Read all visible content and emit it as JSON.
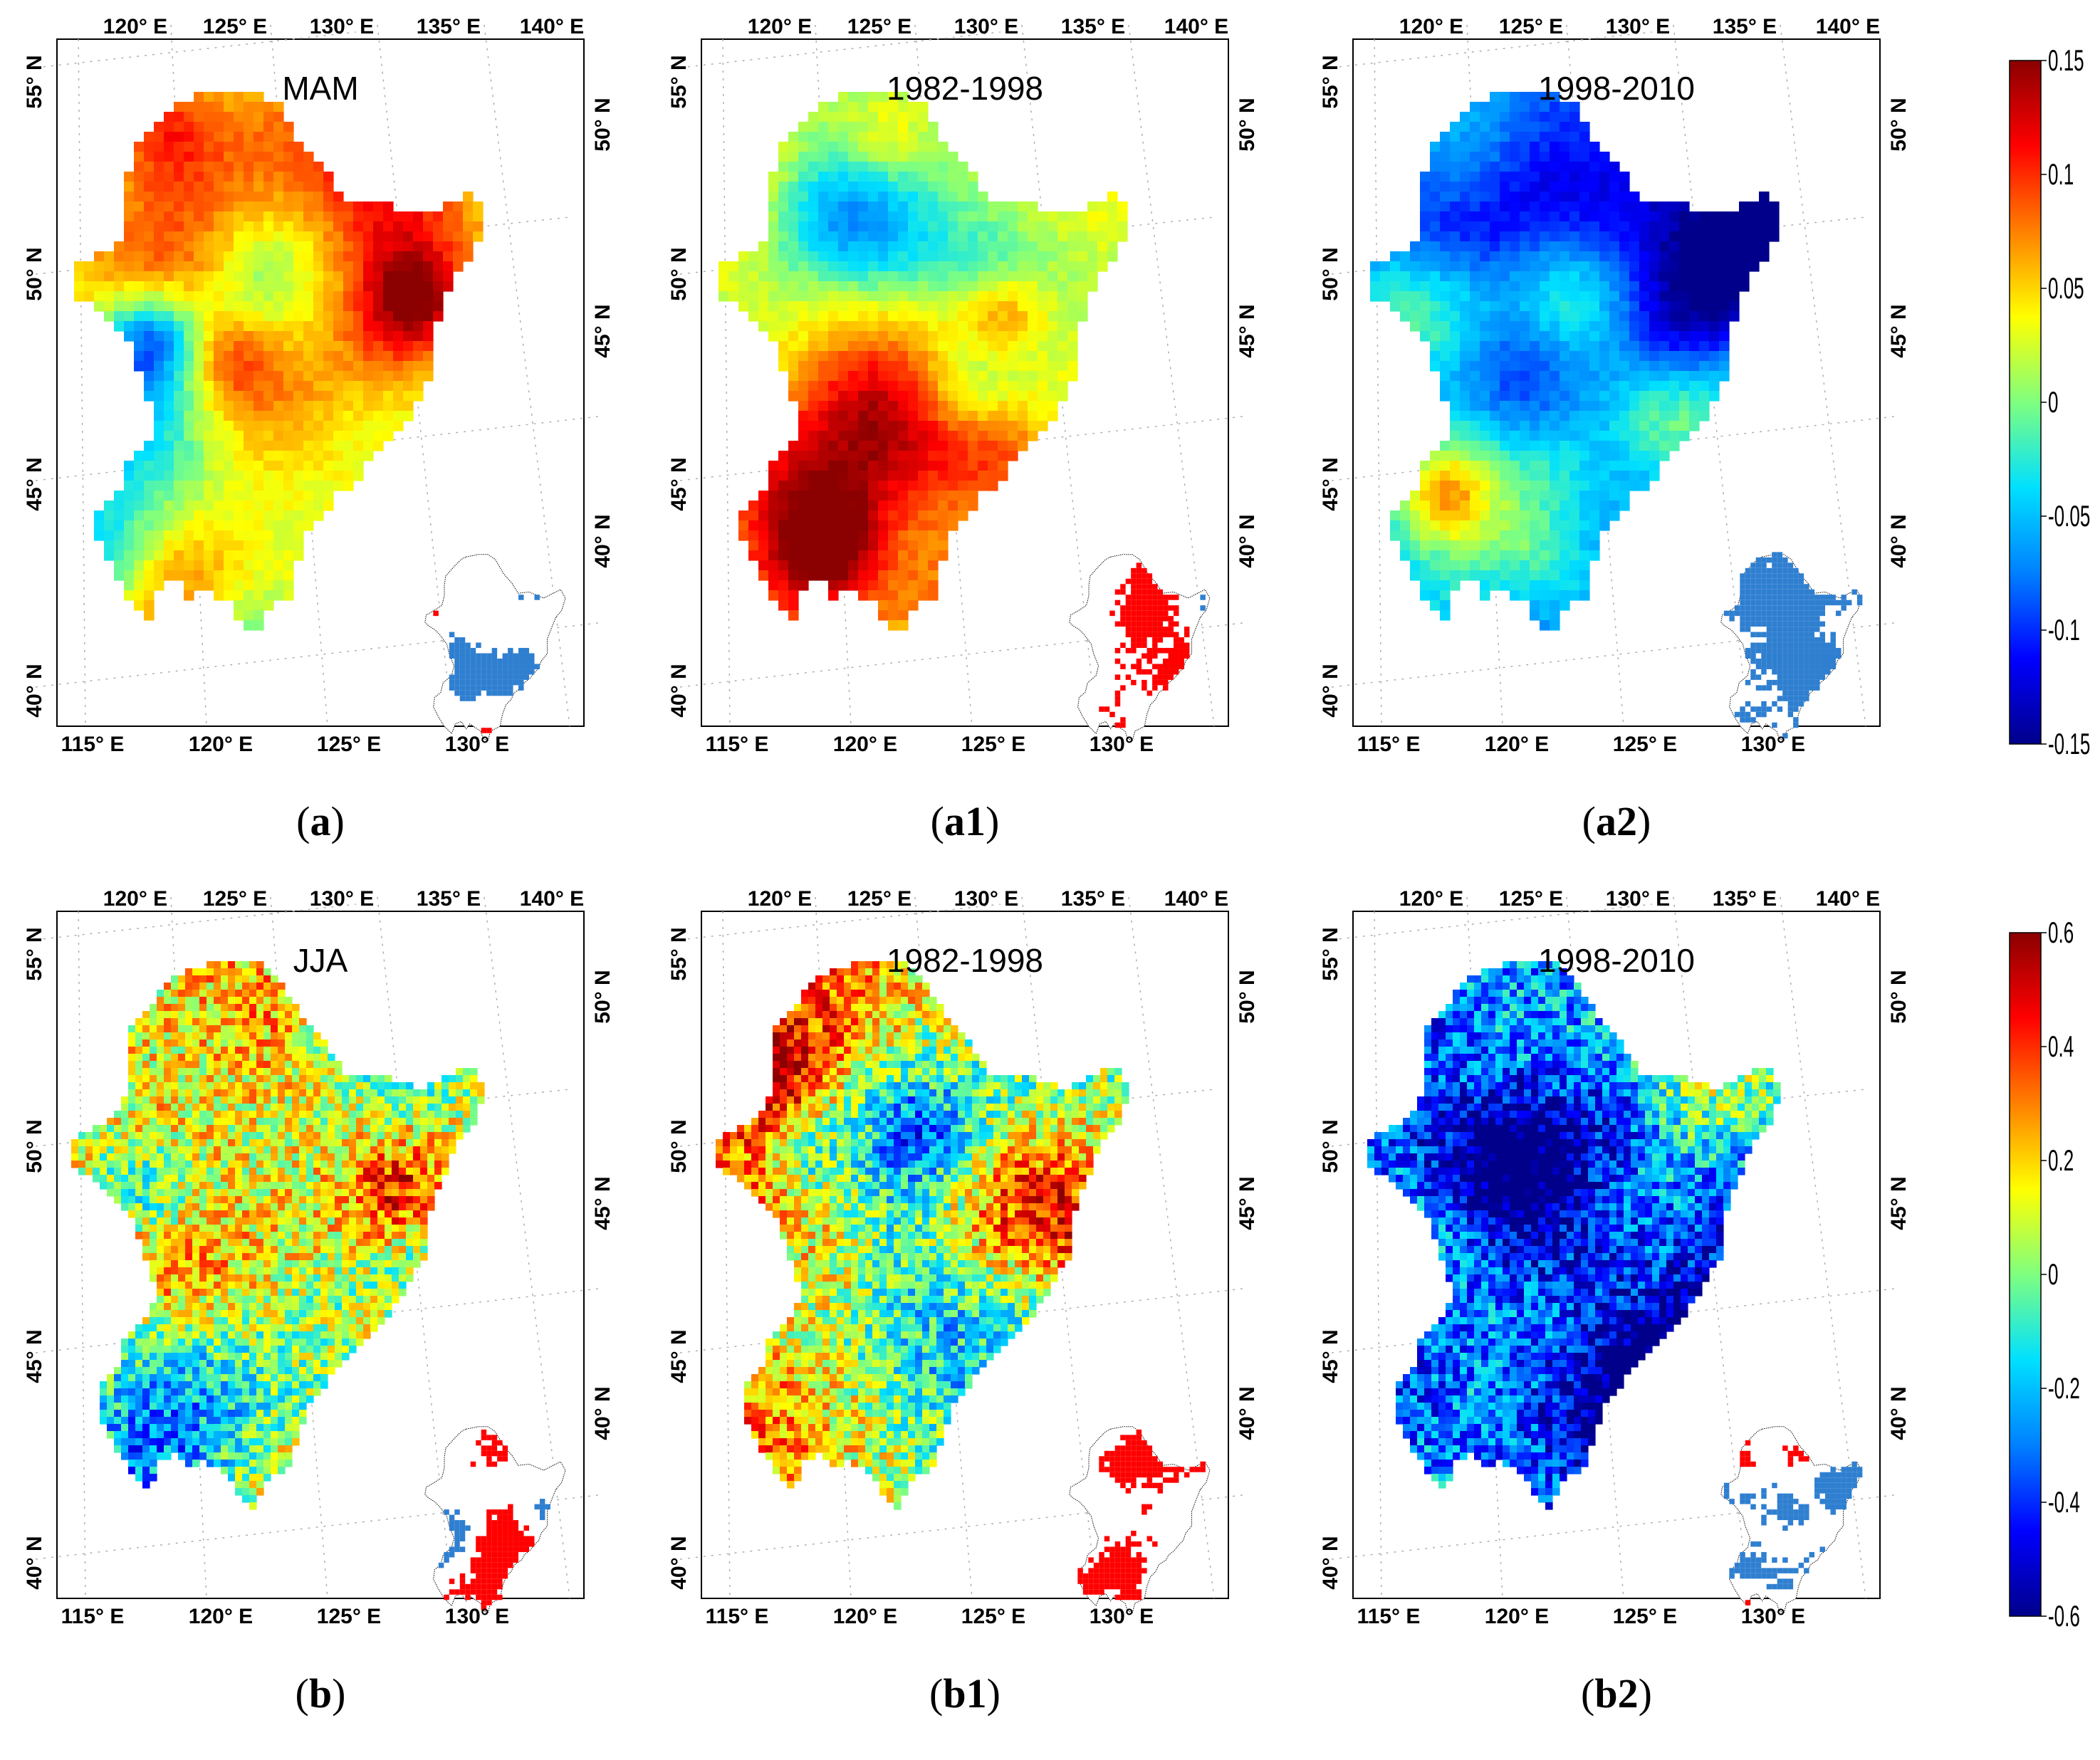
{
  "figure": {
    "rows": [
      {
        "id": "spring",
        "colorbar": {
          "ticks": [
            "0.15",
            "0.1",
            "0.05",
            "0",
            "-0.05",
            "-0.1",
            "-0.15"
          ]
        },
        "panels": [
          {
            "id": "a",
            "title": "MAM",
            "caption_letter": "a",
            "period": "full",
            "style": "smooth"
          },
          {
            "id": "a1",
            "title": "1982-1998",
            "caption_letter": "a1",
            "period": "early",
            "style": "smooth"
          },
          {
            "id": "a2",
            "title": "1998-2010",
            "caption_letter": "a2",
            "period": "late",
            "style": "smooth"
          }
        ]
      },
      {
        "id": "summer",
        "colorbar": {
          "ticks": [
            "0.6",
            "0.4",
            "0.2",
            "0",
            "-0.2",
            "-0.4",
            "-0.6"
          ]
        },
        "panels": [
          {
            "id": "b",
            "title": "JJA",
            "caption_letter": "b",
            "period": "full",
            "style": "speckled"
          },
          {
            "id": "b1",
            "title": "1982-1998",
            "caption_letter": "b1",
            "period": "early",
            "style": "speckled"
          },
          {
            "id": "b2",
            "title": "1998-2010",
            "caption_letter": "b2",
            "period": "late",
            "style": "speckled"
          }
        ]
      }
    ],
    "axes": {
      "lon_top": [
        "120° E",
        "125° E",
        "130° E",
        "135° E",
        "140° E"
      ],
      "lon_bottom": [
        "115° E",
        "120° E",
        "125° E",
        "130° E"
      ],
      "lat_left": [
        "55° N",
        "50° N",
        "45° N",
        "40° N"
      ],
      "lat_right": [
        "50° N",
        "45° N",
        "40° N"
      ]
    },
    "colormap": [
      "#00008b",
      "#0000ff",
      "#0080ff",
      "#00e0ff",
      "#7fff7f",
      "#ffff00",
      "#ff8000",
      "#ff0000",
      "#8b0000"
    ],
    "significance_colors": {
      "positive": "#ff0000",
      "negative": "#2f7fd0"
    }
  }
}
